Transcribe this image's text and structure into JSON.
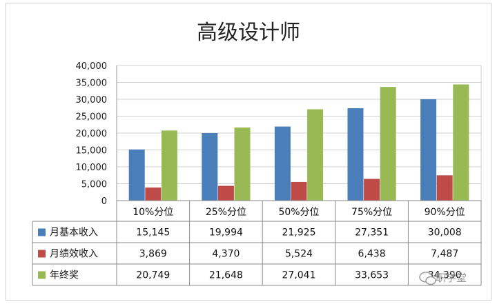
{
  "chart_data": {
    "type": "bar",
    "title": "高级设计师",
    "categories": [
      "10%分位",
      "25%分位",
      "50%分位",
      "75%分位",
      "90%分位"
    ],
    "ylim": [
      0,
      40000
    ],
    "yticks": [
      "40,000",
      "35,000",
      "30,000",
      "25,000",
      "20,000",
      "15,000",
      "10,000",
      "5,000",
      "0"
    ],
    "grid": true,
    "series": [
      {
        "name": "月基本收入",
        "color": "#4a7ebb",
        "values": [
          15145,
          19994,
          21925,
          27351,
          30008
        ],
        "labels": [
          "15,145",
          "19,994",
          "21,925",
          "27,351",
          "30,008"
        ]
      },
      {
        "name": "月绩效收入",
        "color": "#be4b48",
        "values": [
          3869,
          4370,
          5524,
          6438,
          7487
        ],
        "labels": [
          "3,869",
          "4,370",
          "5,524",
          "6,438",
          "7,487"
        ]
      },
      {
        "name": "年终奖",
        "color": "#98b954",
        "values": [
          20749,
          21648,
          27041,
          33653,
          34390
        ],
        "labels": [
          "20,749",
          "21,648",
          "27,041",
          "33,653",
          "34,390"
        ]
      }
    ]
  },
  "watermark": "职学堂"
}
